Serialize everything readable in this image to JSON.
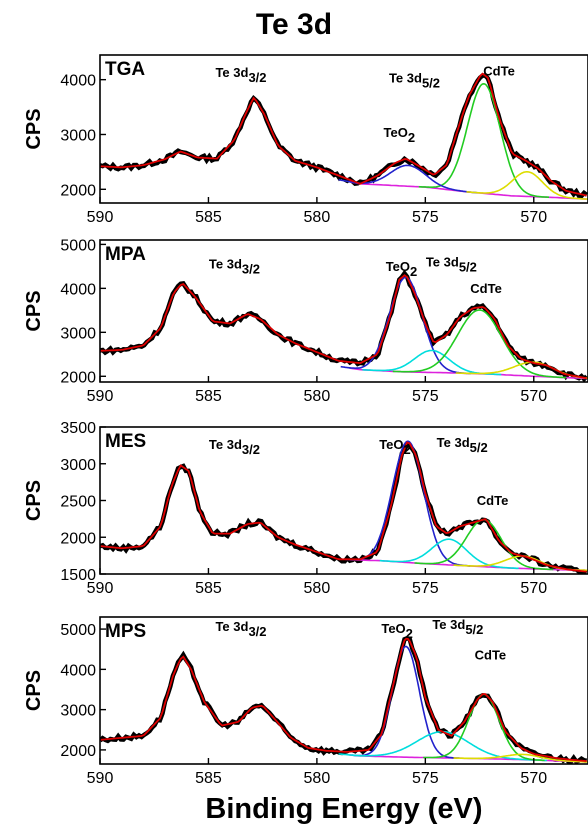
{
  "title": "Te 3d",
  "xlabel": "Binding Energy (eV)",
  "chart_data": [
    {
      "type": "line",
      "panel": "TGA",
      "ylabel": "CPS",
      "xlim": [
        590,
        567.5
      ],
      "ylim": [
        1750,
        4450
      ],
      "yticks": [
        2000,
        3000,
        4000
      ],
      "xticks": [
        590,
        585,
        580,
        575,
        570
      ],
      "annotations": [
        {
          "text": "Te 3d",
          "sub": "3/2",
          "x": 583.5,
          "y": 4050
        },
        {
          "text": "Te 3d",
          "sub": "5/2",
          "x": 575.5,
          "y": 3950
        },
        {
          "text": "CdTe",
          "x": 571.6,
          "y": 4080
        },
        {
          "text": "TeO",
          "sub": "2",
          "x": 576.2,
          "y": 2950
        }
      ],
      "peaks": {
        "background": [
          [
            590,
            2330
          ],
          [
            588,
            2330
          ],
          [
            585,
            2330
          ],
          [
            583,
            2320
          ],
          [
            580,
            2250
          ],
          [
            578,
            2100
          ],
          [
            577,
            2080
          ],
          [
            575,
            2040
          ],
          [
            573,
            1950
          ],
          [
            571,
            1880
          ],
          [
            569,
            1850
          ],
          [
            567.5,
            1820
          ]
        ],
        "data": [
          [
            590,
            2420
          ],
          [
            589,
            2400
          ],
          [
            588,
            2440
          ],
          [
            587,
            2550
          ],
          [
            586.3,
            2690
          ],
          [
            585.5,
            2580
          ],
          [
            584.6,
            2560
          ],
          [
            583.8,
            2900
          ],
          [
            583.2,
            3450
          ],
          [
            582.9,
            3680
          ],
          [
            582.4,
            3350
          ],
          [
            581.8,
            2800
          ],
          [
            581,
            2520
          ],
          [
            580,
            2400
          ],
          [
            579,
            2250
          ],
          [
            578,
            2100
          ],
          [
            577.2,
            2250
          ],
          [
            576.4,
            2480
          ],
          [
            575.9,
            2560
          ],
          [
            575.4,
            2450
          ],
          [
            574.6,
            2260
          ],
          [
            574,
            2450
          ],
          [
            573.5,
            3100
          ],
          [
            573,
            3700
          ],
          [
            572.4,
            4120
          ],
          [
            572.1,
            4030
          ],
          [
            571.6,
            3300
          ],
          [
            571,
            2650
          ],
          [
            570.4,
            2530
          ],
          [
            569.8,
            2380
          ],
          [
            569.2,
            2150
          ],
          [
            568.5,
            1970
          ],
          [
            567.5,
            1880
          ]
        ],
        "components": [
          {
            "name": "CdTe",
            "color": "#22cc22",
            "center": 572.3,
            "height": 2000,
            "width": 0.75
          },
          {
            "name": "TeO2",
            "color": "#2222cc",
            "center": 575.8,
            "height": 380,
            "width": 0.8
          },
          {
            "name": "Yellow",
            "color": "#dddd00",
            "center": 570.3,
            "height": 450,
            "width": 0.7
          }
        ]
      }
    },
    {
      "type": "line",
      "panel": "MPA",
      "ylabel": "CPS",
      "xlim": [
        590,
        567.5
      ],
      "ylim": [
        1870,
        5100
      ],
      "yticks": [
        2000,
        3000,
        4000,
        5000
      ],
      "xticks": [
        590,
        585,
        580,
        575,
        570
      ],
      "annotations": [
        {
          "text": "Te 3d",
          "sub": "3/2",
          "x": 583.8,
          "y": 4450
        },
        {
          "text": "TeO",
          "sub": "2",
          "x": 576.1,
          "y": 4400
        },
        {
          "text": "Te 3d",
          "sub": "5/2",
          "x": 573.8,
          "y": 4500
        },
        {
          "text": "CdTe",
          "x": 572.2,
          "y": 3900
        }
      ],
      "peaks": {
        "background": [
          [
            590,
            2550
          ],
          [
            587,
            2600
          ],
          [
            585,
            2560
          ],
          [
            582,
            2480
          ],
          [
            580,
            2300
          ],
          [
            578,
            2150
          ],
          [
            576,
            2100
          ],
          [
            574,
            2080
          ],
          [
            572,
            2050
          ],
          [
            570,
            2000
          ],
          [
            567.5,
            1950
          ]
        ],
        "data": [
          [
            590,
            2580
          ],
          [
            589,
            2600
          ],
          [
            588,
            2700
          ],
          [
            587.2,
            3100
          ],
          [
            586.6,
            3900
          ],
          [
            586.2,
            4120
          ],
          [
            585.6,
            3800
          ],
          [
            584.8,
            3250
          ],
          [
            584,
            3200
          ],
          [
            583.2,
            3420
          ],
          [
            582.6,
            3300
          ],
          [
            581.8,
            2950
          ],
          [
            581,
            2750
          ],
          [
            580,
            2550
          ],
          [
            579,
            2350
          ],
          [
            578,
            2300
          ],
          [
            577.2,
            2500
          ],
          [
            576.6,
            3400
          ],
          [
            576.2,
            4200
          ],
          [
            575.9,
            4320
          ],
          [
            575.5,
            3900
          ],
          [
            575,
            3200
          ],
          [
            574.6,
            2750
          ],
          [
            574,
            2950
          ],
          [
            573.4,
            3350
          ],
          [
            572.8,
            3550
          ],
          [
            572.3,
            3580
          ],
          [
            571.8,
            3300
          ],
          [
            571.2,
            2700
          ],
          [
            570.6,
            2400
          ],
          [
            570,
            2300
          ],
          [
            569.4,
            2250
          ],
          [
            568.6,
            2050
          ],
          [
            567.5,
            1950
          ]
        ],
        "components": [
          {
            "name": "TeO2",
            "color": "#2222cc",
            "center": 575.9,
            "height": 2150,
            "width": 0.75
          },
          {
            "name": "Cyan",
            "color": "#00dddd",
            "center": 574.7,
            "height": 500,
            "width": 0.8
          },
          {
            "name": "CdTe",
            "color": "#22cc22",
            "center": 572.5,
            "height": 1450,
            "width": 1.0
          },
          {
            "name": "Yellow",
            "color": "#dddd00",
            "center": 570.0,
            "height": 320,
            "width": 0.9
          }
        ]
      }
    },
    {
      "type": "line",
      "panel": "MES",
      "ylabel": "CPS",
      "xlim": [
        590,
        567.5
      ],
      "ylim": [
        1500,
        3500
      ],
      "yticks": [
        1500,
        2000,
        2500,
        3000,
        3500
      ],
      "xticks": [
        590,
        585,
        580,
        575,
        570
      ],
      "annotations": [
        {
          "text": "Te 3d",
          "sub": "3/2",
          "x": 583.8,
          "y": 3200
        },
        {
          "text": "TeO",
          "sub": "2",
          "x": 576.4,
          "y": 3200
        },
        {
          "text": "Te 3d",
          "sub": "5/2",
          "x": 573.3,
          "y": 3230
        },
        {
          "text": "CdTe",
          "x": 571.9,
          "y": 2440
        }
      ],
      "peaks": {
        "background": [
          [
            590,
            1900
          ],
          [
            587,
            1900
          ],
          [
            584,
            1850
          ],
          [
            581,
            1780
          ],
          [
            579,
            1700
          ],
          [
            577,
            1680
          ],
          [
            575,
            1640
          ],
          [
            573,
            1610
          ],
          [
            571,
            1580
          ],
          [
            569,
            1560
          ],
          [
            567.5,
            1550
          ]
        ],
        "data": [
          [
            590,
            1880
          ],
          [
            589,
            1850
          ],
          [
            588,
            1880
          ],
          [
            587.2,
            2150
          ],
          [
            586.7,
            2700
          ],
          [
            586.3,
            2980
          ],
          [
            585.9,
            2900
          ],
          [
            585.4,
            2350
          ],
          [
            584.8,
            2050
          ],
          [
            584,
            2050
          ],
          [
            583.2,
            2180
          ],
          [
            582.6,
            2200
          ],
          [
            581.8,
            2000
          ],
          [
            581,
            1900
          ],
          [
            580,
            1800
          ],
          [
            579,
            1700
          ],
          [
            578,
            1700
          ],
          [
            577.2,
            1800
          ],
          [
            576.6,
            2400
          ],
          [
            576.1,
            3100
          ],
          [
            575.8,
            3320
          ],
          [
            575.4,
            3100
          ],
          [
            575,
            2600
          ],
          [
            574.5,
            2150
          ],
          [
            574,
            2050
          ],
          [
            573.4,
            2150
          ],
          [
            572.8,
            2200
          ],
          [
            572.2,
            2250
          ],
          [
            571.6,
            1950
          ],
          [
            571,
            1780
          ],
          [
            570.3,
            1730
          ],
          [
            569.4,
            1620
          ],
          [
            568.4,
            1560
          ],
          [
            567.5,
            1530
          ]
        ],
        "components": [
          {
            "name": "TeO2",
            "color": "#2222cc",
            "center": 575.8,
            "height": 1650,
            "width": 0.72
          },
          {
            "name": "Cyan",
            "color": "#00dddd",
            "center": 573.9,
            "height": 350,
            "width": 0.8
          },
          {
            "name": "CdTe",
            "color": "#22cc22",
            "center": 572.3,
            "height": 640,
            "width": 0.8
          },
          {
            "name": "Yellow",
            "color": "#dddd00",
            "center": 570.5,
            "height": 170,
            "width": 0.8
          }
        ]
      }
    },
    {
      "type": "line",
      "panel": "MPS",
      "ylabel": "CPS",
      "xlim": [
        590,
        567.5
      ],
      "ylim": [
        1650,
        5300
      ],
      "yticks": [
        2000,
        3000,
        4000,
        5000
      ],
      "xticks": [
        590,
        585,
        580,
        575,
        570
      ],
      "annotations": [
        {
          "text": "Te 3d",
          "sub": "3/2",
          "x": 583.5,
          "y": 4950
        },
        {
          "text": "TeO",
          "sub": "2",
          "x": 576.3,
          "y": 4900
        },
        {
          "text": "Te 3d",
          "sub": "5/2",
          "x": 573.5,
          "y": 5000
        },
        {
          "text": "CdTe",
          "x": 572.0,
          "y": 4250
        }
      ],
      "peaks": {
        "background": [
          [
            590,
            2250
          ],
          [
            588,
            2300
          ],
          [
            585,
            2300
          ],
          [
            582,
            2150
          ],
          [
            580,
            1950
          ],
          [
            578,
            1850
          ],
          [
            576,
            1820
          ],
          [
            574,
            1800
          ],
          [
            572,
            1780
          ],
          [
            570,
            1750
          ],
          [
            567.5,
            1700
          ]
        ],
        "data": [
          [
            590,
            2250
          ],
          [
            589,
            2300
          ],
          [
            588,
            2350
          ],
          [
            587.2,
            2800
          ],
          [
            586.6,
            3900
          ],
          [
            586.2,
            4350
          ],
          [
            585.8,
            4000
          ],
          [
            585.2,
            3200
          ],
          [
            584.4,
            2600
          ],
          [
            583.6,
            2700
          ],
          [
            583,
            3050
          ],
          [
            582.5,
            3100
          ],
          [
            582,
            2800
          ],
          [
            581.2,
            2300
          ],
          [
            580.4,
            2050
          ],
          [
            579.6,
            1980
          ],
          [
            578.6,
            1950
          ],
          [
            577.6,
            2000
          ],
          [
            577,
            2400
          ],
          [
            576.4,
            3800
          ],
          [
            576,
            4700
          ],
          [
            575.8,
            4800
          ],
          [
            575.4,
            4300
          ],
          [
            575,
            3300
          ],
          [
            574.4,
            2500
          ],
          [
            573.8,
            2350
          ],
          [
            573.2,
            2700
          ],
          [
            572.6,
            3250
          ],
          [
            572.3,
            3420
          ],
          [
            571.9,
            3200
          ],
          [
            571.3,
            2450
          ],
          [
            570.6,
            2050
          ],
          [
            570,
            1900
          ],
          [
            569,
            1800
          ],
          [
            568.2,
            1750
          ],
          [
            567.5,
            1720
          ]
        ],
        "components": [
          {
            "name": "TeO2",
            "color": "#2222cc",
            "center": 575.9,
            "height": 2750,
            "width": 0.62
          },
          {
            "name": "Cyan",
            "color": "#00dddd",
            "center": 574.2,
            "height": 650,
            "width": 1.2
          },
          {
            "name": "CdTe",
            "color": "#22cc22",
            "center": 572.3,
            "height": 1600,
            "width": 0.7
          },
          {
            "name": "Yellow",
            "color": "#dddd00",
            "center": 570.5,
            "height": 130,
            "width": 0.8
          }
        ]
      }
    }
  ]
}
